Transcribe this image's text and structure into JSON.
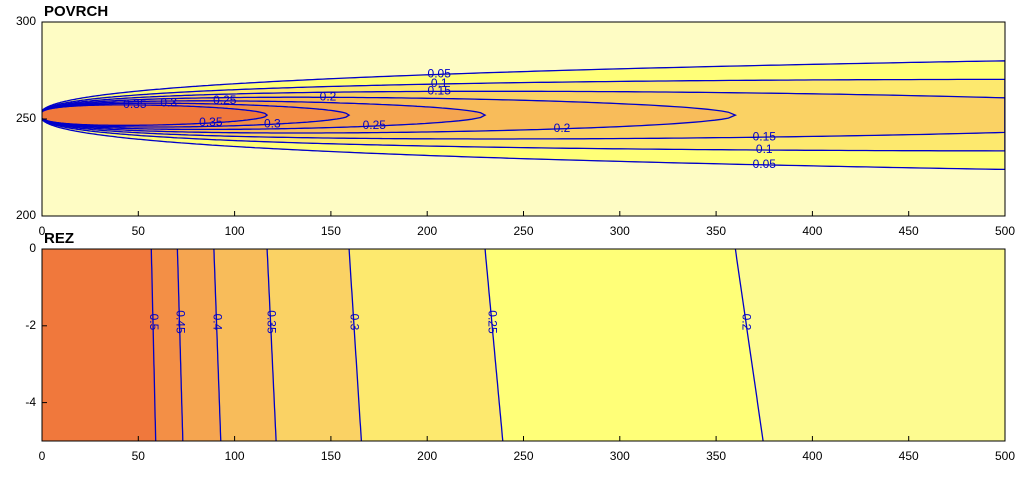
{
  "chart_data": [
    {
      "type": "contour",
      "title": "POVRCH",
      "xlim": [
        0,
        500
      ],
      "xticks": [
        0,
        50,
        100,
        150,
        200,
        250,
        300,
        350,
        400,
        450,
        500
      ],
      "ylim": [
        200,
        300
      ],
      "yticks": [
        200,
        250,
        300
      ],
      "levels": [
        0.05,
        0.1,
        0.15,
        0.2,
        0.25,
        0.3,
        0.35
      ]
    },
    {
      "type": "contour-section",
      "title": "REZ",
      "xlim": [
        0,
        500
      ],
      "xticks": [
        0,
        50,
        100,
        150,
        200,
        250,
        300,
        350,
        400,
        450,
        500
      ],
      "ylim": [
        -5,
        0
      ],
      "yticks": [
        -4,
        -2,
        0
      ],
      "levels": [
        0.2,
        0.25,
        0.3,
        0.35,
        0.4,
        0.45,
        0.5
      ]
    }
  ]
}
